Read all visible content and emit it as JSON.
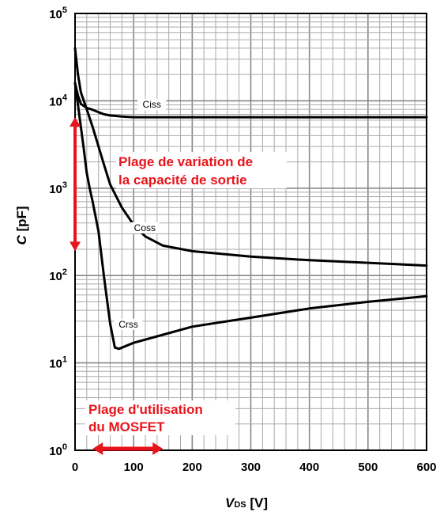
{
  "chart_data": {
    "type": "line",
    "xlabel_main": "V",
    "xlabel_sub": "DS",
    "xlabel_unit": " [V]",
    "ylabel_main": "C",
    "ylabel_unit": "  [pF]",
    "xlim": [
      0,
      600
    ],
    "ylim": [
      1,
      100000
    ],
    "yscale": "log",
    "grid": true,
    "x_ticks": [
      "0",
      "100",
      "200",
      "300",
      "400",
      "500",
      "600"
    ],
    "y_tick_base": "10",
    "y_tick_exponents": [
      "0",
      "1",
      "2",
      "3",
      "4",
      "5"
    ],
    "series": [
      {
        "name": "Ciss",
        "x": [
          0,
          5,
          10,
          20,
          30,
          40,
          50,
          60,
          80,
          100,
          200,
          300,
          400,
          500,
          600
        ],
        "y": [
          16000,
          11500,
          9200,
          8300,
          7900,
          7400,
          7000,
          6800,
          6600,
          6500,
          6500,
          6500,
          6500,
          6500,
          6500
        ]
      },
      {
        "name": "Coss",
        "x": [
          0,
          5,
          10,
          20,
          30,
          40,
          50,
          60,
          80,
          100,
          120,
          150,
          200,
          300,
          400,
          500,
          600
        ],
        "y": [
          40000,
          20000,
          12500,
          8000,
          5000,
          3000,
          1800,
          1100,
          600,
          380,
          280,
          220,
          190,
          165,
          150,
          140,
          130
        ]
      },
      {
        "name": "Crss",
        "x": [
          0,
          5,
          10,
          15,
          20,
          25,
          30,
          40,
          50,
          60,
          68,
          75,
          100,
          150,
          200,
          300,
          400,
          500,
          600
        ],
        "y": [
          16000,
          9000,
          5000,
          2800,
          1500,
          1000,
          700,
          320,
          90,
          28,
          15,
          14.5,
          17,
          21,
          26,
          33,
          42,
          50,
          58
        ]
      }
    ],
    "annotations": {
      "output_capacitance_range": {
        "line1": "Plage de variation de",
        "line2": "la capacité de sortie",
        "y_from": 6500,
        "y_to": 190
      },
      "operating_range": {
        "line1": "Plage d'utilisation",
        "line2": "du MOSFET",
        "x_from": 30,
        "x_to": 150
      }
    },
    "colors": {
      "curve": "#000000",
      "annotation": "#e8141b",
      "grid": "#aaaaaa",
      "frame": "#000000"
    }
  }
}
